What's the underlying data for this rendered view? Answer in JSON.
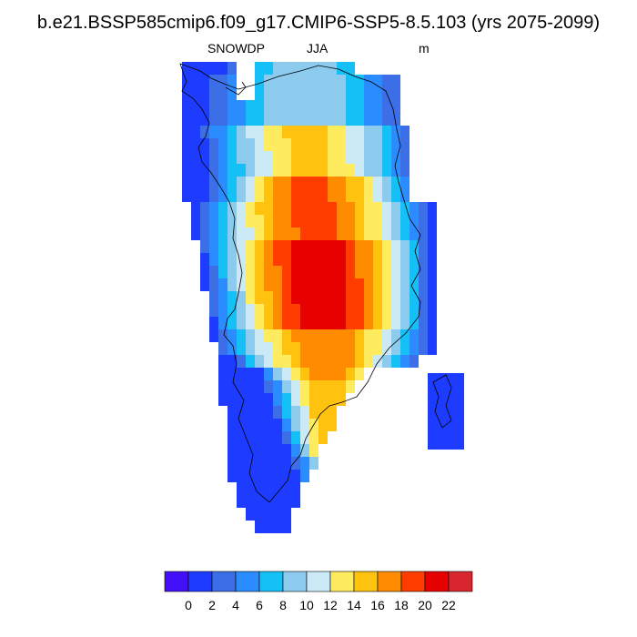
{
  "title": "b.e21.BSSP585cmip6.f09_g17.CMIP6-SSP5-8.5.103 (yrs 2075-2099)",
  "subtitle": {
    "variable": "SNOWDP",
    "season": "JJA",
    "units": "m"
  },
  "colorbar": {
    "colors": [
      "#4410f8",
      "#1e3cff",
      "#3c6ee8",
      "#2b8cff",
      "#14c0f5",
      "#8ccbee",
      "#cce9f6",
      "#ffec5e",
      "#ffc20e",
      "#ff8b00",
      "#ff3d00",
      "#e60000",
      "#d8262f"
    ],
    "tick_labels": [
      "0",
      "2",
      "4",
      "6",
      "8",
      "10",
      "12",
      "14",
      "16",
      "18",
      "20",
      "22"
    ]
  }
}
